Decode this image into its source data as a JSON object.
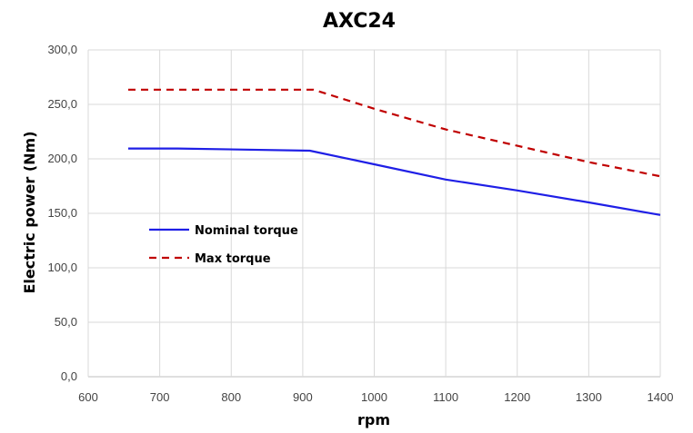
{
  "chart_data": {
    "type": "line",
    "title": "AXC24",
    "xlabel": "rpm",
    "ylabel": "Electric power (Nm)",
    "xlim": [
      600,
      1400
    ],
    "ylim": [
      0,
      300
    ],
    "x_ticks": [
      "600",
      "700",
      "800",
      "900",
      "1000",
      "1100",
      "1200",
      "1300",
      "1400"
    ],
    "y_ticks": [
      "0,0",
      "50,0",
      "100,0",
      "150,0",
      "200,0",
      "250,0",
      "300,0"
    ],
    "grid": true,
    "legend_position": "left",
    "series": [
      {
        "name": "Nominal torque",
        "color": "#1f1fe6",
        "dash": "solid",
        "points": [
          [
            656,
            209.5
          ],
          [
            725,
            209.5
          ],
          [
            910,
            207.5
          ],
          [
            1000,
            195
          ],
          [
            1100,
            181
          ],
          [
            1200,
            171
          ],
          [
            1300,
            160
          ],
          [
            1400,
            148.5
          ]
        ]
      },
      {
        "name": "Max torque",
        "color": "#c00000",
        "dash": "dashed",
        "points": [
          [
            656,
            263.5
          ],
          [
            915,
            263.5
          ],
          [
            1000,
            246
          ],
          [
            1100,
            227
          ],
          [
            1200,
            212
          ],
          [
            1300,
            197
          ],
          [
            1400,
            184
          ]
        ]
      }
    ]
  }
}
